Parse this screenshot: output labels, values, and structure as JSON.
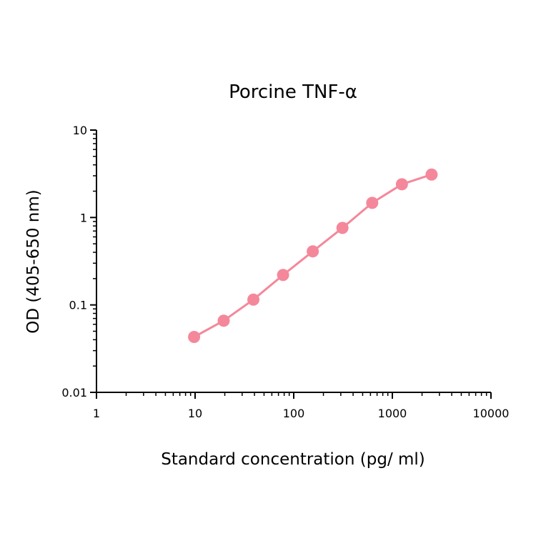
{
  "chart_data": {
    "type": "line",
    "title": "Porcine TNF-α",
    "xlabel": "Standard concentration (pg/ ml)",
    "ylabel": "OD (405-650 nm)",
    "x_scale": "log",
    "y_scale": "log",
    "xlim": [
      1,
      10000
    ],
    "ylim": [
      0.01,
      10
    ],
    "x_ticks": [
      "1",
      "10",
      "100",
      "1000",
      "10000"
    ],
    "y_ticks": [
      "0.01",
      "0.1",
      "1",
      "10"
    ],
    "grid": false,
    "series": [
      {
        "color": "#f4889a",
        "x": [
          9.77,
          19.5,
          39,
          78,
          156,
          312,
          625,
          1250,
          2500
        ],
        "y": [
          0.043,
          0.066,
          0.115,
          0.22,
          0.41,
          0.76,
          1.47,
          2.4,
          3.1
        ]
      }
    ]
  }
}
